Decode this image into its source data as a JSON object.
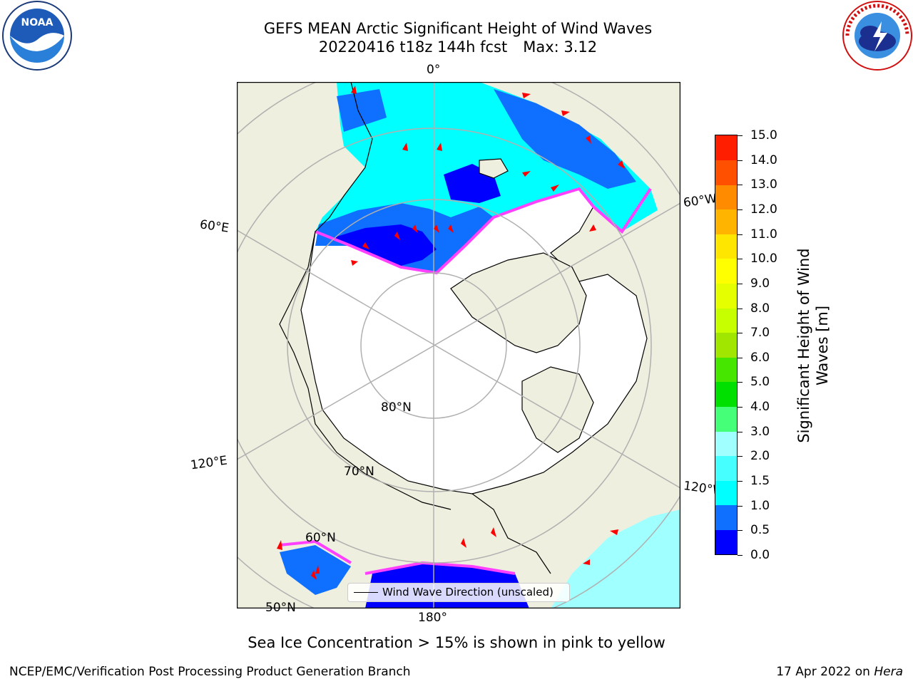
{
  "title": {
    "line1": "GEFS MEAN Arctic Significant Height of Wind Waves",
    "line2_run": "20220416 t18z 144h fcst",
    "line2_max": "Max: 3.12"
  },
  "map": {
    "projection": "north-polar-stereographic",
    "meridian_labels": {
      "lon_0": "0°",
      "lon_60e": "60°E",
      "lon_60w": "60°W",
      "lon_120e": "120°E",
      "lon_120w": "120°W",
      "lon_180": "180°"
    },
    "parallel_labels": {
      "lat_80": "80°N",
      "lat_70": "70°N",
      "lat_60": "60°N",
      "lat_50": "50°N"
    },
    "colors": {
      "land": "#efefdf",
      "ocean_low": "#0000ff",
      "ocean_mid": "#0f6fff",
      "ocean_high": "#00ffff",
      "ocean_top": "#a0ffff",
      "sea_ice": "#ff40ff",
      "arrow": "#ff0000",
      "grid": "#b0b0b0"
    }
  },
  "legend": {
    "label": "Wind Wave Direction (unscaled)"
  },
  "colorbar": {
    "title_line1": "Significant Height of Wind",
    "title_line2": "Waves [m]",
    "tick_labels": [
      "0.0",
      "0.5",
      "1.0",
      "1.5",
      "2.0",
      "3.0",
      "4.0",
      "5.0",
      "6.0",
      "7.0",
      "8.0",
      "9.0",
      "10.0",
      "11.0",
      "12.0",
      "13.0",
      "14.0",
      "15.0"
    ],
    "colors": [
      "#0000ff",
      "#0f6fff",
      "#00ffff",
      "#46ffff",
      "#a0ffff",
      "#46ff78",
      "#00e000",
      "#46e600",
      "#a0e600",
      "#c8ff00",
      "#e6ff00",
      "#ffff00",
      "#ffe600",
      "#ffb400",
      "#ff8c00",
      "#ff5000",
      "#ff1e00"
    ]
  },
  "footnote": "Sea Ice Concentration > 15% is shown in pink to yellow",
  "credit": "NCEP/EMC/Verification Post Processing Product Generation Branch",
  "datestamp": {
    "date": "17 Apr 2022 on",
    "host": "Hera"
  },
  "logos": {
    "left": "NOAA",
    "right": "NATIONAL WEATHER SERVICE"
  }
}
